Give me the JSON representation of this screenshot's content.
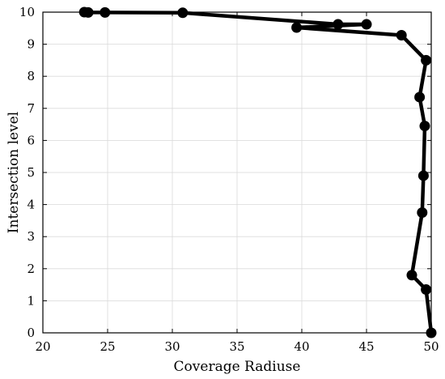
{
  "chart_data": {
    "type": "line",
    "title": "",
    "xlabel": "Coverage Radiuse",
    "ylabel": "Intersection level",
    "xlim": [
      20,
      50
    ],
    "ylim": [
      0,
      10
    ],
    "xticks": [
      20,
      25,
      30,
      35,
      40,
      45,
      50
    ],
    "yticks": [
      0,
      1,
      2,
      3,
      4,
      5,
      6,
      7,
      8,
      9,
      10
    ],
    "grid": true,
    "legend": "none",
    "line_color": "#000000",
    "series": [
      {
        "points": [
          [
            50.0,
            0.0
          ],
          [
            49.6,
            1.35
          ],
          [
            48.5,
            1.8
          ],
          [
            49.3,
            3.75
          ],
          [
            49.4,
            4.9
          ],
          [
            49.5,
            6.45
          ],
          [
            49.1,
            7.35
          ],
          [
            49.6,
            8.5
          ],
          [
            47.7,
            9.28
          ],
          [
            39.6,
            9.52
          ],
          [
            45.0,
            9.62
          ],
          [
            42.8,
            9.62
          ],
          [
            30.8,
            9.98
          ],
          [
            24.8,
            9.99
          ],
          [
            23.5,
            9.99
          ],
          [
            23.2,
            10.0
          ]
        ]
      }
    ]
  }
}
